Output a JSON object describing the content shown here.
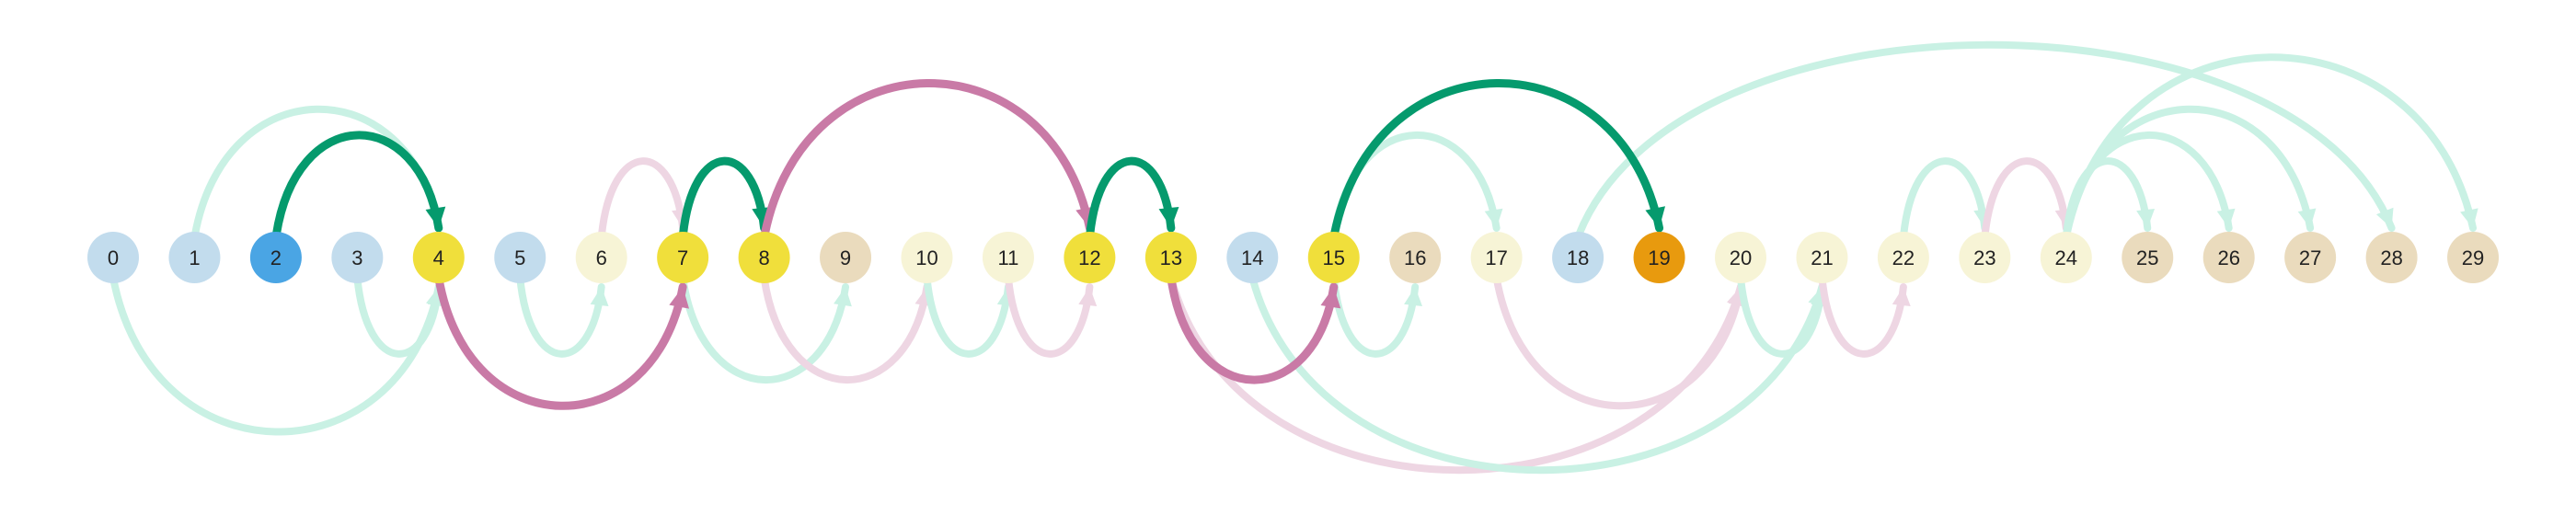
{
  "colors": {
    "edge_faint_green": "#c9f1e4",
    "edge_faint_pink": "#eed6e3",
    "edge_bold_green": "#059a6d",
    "edge_bold_pink": "#c97aa6",
    "node_blue_light": "#c2dced",
    "node_blue": "#4aa5e4",
    "node_cream": "#f7f4d6",
    "node_yellow": "#f0df3b",
    "node_tan": "#eadbbd",
    "node_orange": "#e89a0e"
  },
  "nodes": [
    {
      "label": "0",
      "color": "blue_light"
    },
    {
      "label": "1",
      "color": "blue_light"
    },
    {
      "label": "2",
      "color": "blue"
    },
    {
      "label": "3",
      "color": "blue_light"
    },
    {
      "label": "4",
      "color": "yellow"
    },
    {
      "label": "5",
      "color": "blue_light"
    },
    {
      "label": "6",
      "color": "cream"
    },
    {
      "label": "7",
      "color": "yellow"
    },
    {
      "label": "8",
      "color": "yellow"
    },
    {
      "label": "9",
      "color": "tan"
    },
    {
      "label": "10",
      "color": "cream"
    },
    {
      "label": "11",
      "color": "cream"
    },
    {
      "label": "12",
      "color": "yellow"
    },
    {
      "label": "13",
      "color": "yellow"
    },
    {
      "label": "14",
      "color": "blue_light"
    },
    {
      "label": "15",
      "color": "yellow"
    },
    {
      "label": "16",
      "color": "tan"
    },
    {
      "label": "17",
      "color": "cream"
    },
    {
      "label": "18",
      "color": "blue_light"
    },
    {
      "label": "19",
      "color": "orange"
    },
    {
      "label": "20",
      "color": "cream"
    },
    {
      "label": "21",
      "color": "cream"
    },
    {
      "label": "22",
      "color": "cream"
    },
    {
      "label": "23",
      "color": "cream"
    },
    {
      "label": "24",
      "color": "cream"
    },
    {
      "label": "25",
      "color": "tan"
    },
    {
      "label": "26",
      "color": "tan"
    },
    {
      "label": "27",
      "color": "tan"
    },
    {
      "label": "28",
      "color": "tan"
    },
    {
      "label": "29",
      "color": "tan"
    }
  ],
  "edges": [
    {
      "from": 1,
      "to": 4,
      "style": "faint_green"
    },
    {
      "from": 6,
      "to": 7,
      "style": "faint_pink"
    },
    {
      "from": 15,
      "to": 17,
      "style": "faint_green"
    },
    {
      "from": 18,
      "to": 28,
      "style": "faint_green"
    },
    {
      "from": 22,
      "to": 23,
      "style": "faint_green"
    },
    {
      "from": 23,
      "to": 24,
      "style": "faint_pink"
    },
    {
      "from": 24,
      "to": 25,
      "style": "faint_green"
    },
    {
      "from": 24,
      "to": 26,
      "style": "faint_green"
    },
    {
      "from": 24,
      "to": 27,
      "style": "faint_green"
    },
    {
      "from": 24,
      "to": 29,
      "style": "faint_green"
    },
    {
      "from": 0,
      "to": 4,
      "style": "faint_green"
    },
    {
      "from": 3,
      "to": 4,
      "style": "faint_green"
    },
    {
      "from": 5,
      "to": 6,
      "style": "faint_green"
    },
    {
      "from": 7,
      "to": 9,
      "style": "faint_green"
    },
    {
      "from": 8,
      "to": 10,
      "style": "faint_pink"
    },
    {
      "from": 10,
      "to": 11,
      "style": "faint_green"
    },
    {
      "from": 11,
      "to": 12,
      "style": "faint_pink"
    },
    {
      "from": 13,
      "to": 20,
      "style": "faint_pink"
    },
    {
      "from": 14,
      "to": 21,
      "style": "faint_green"
    },
    {
      "from": 15,
      "to": 16,
      "style": "faint_green"
    },
    {
      "from": 17,
      "to": 20,
      "style": "faint_pink"
    },
    {
      "from": 20,
      "to": 21,
      "style": "faint_green"
    },
    {
      "from": 21,
      "to": 22,
      "style": "faint_pink"
    },
    {
      "from": 2,
      "to": 4,
      "style": "bold_green"
    },
    {
      "from": 7,
      "to": 8,
      "style": "bold_green"
    },
    {
      "from": 8,
      "to": 12,
      "style": "bold_pink"
    },
    {
      "from": 12,
      "to": 13,
      "style": "bold_green"
    },
    {
      "from": 15,
      "to": 19,
      "style": "bold_green"
    },
    {
      "from": 4,
      "to": 7,
      "style": "bold_pink"
    },
    {
      "from": 13,
      "to": 15,
      "style": "bold_pink"
    }
  ]
}
